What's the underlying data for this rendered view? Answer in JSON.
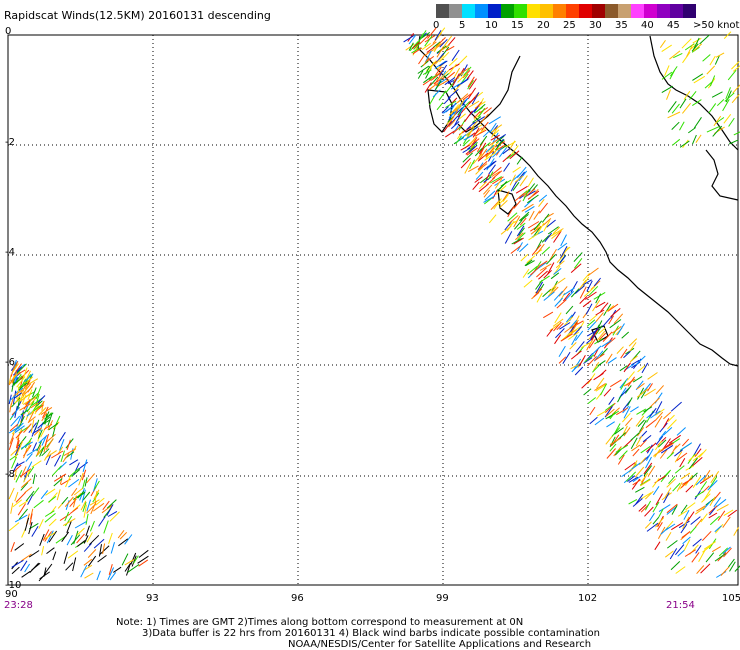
{
  "title": "Rapidscat Winds(12.5KM) 20160131 descending",
  "legend": {
    "ticks": [
      "0",
      "5",
      "10",
      "15",
      "20",
      "25",
      "30",
      "35",
      "40",
      "45",
      ">50 knots"
    ],
    "colors": [
      "#505050",
      "#909090",
      "#00e0ff",
      "#0090ff",
      "#0020c8",
      "#00a000",
      "#30e000",
      "#ffe000",
      "#ffc000",
      "#ff8000",
      "#ff4000",
      "#e00000",
      "#a00000",
      "#8b5a2b",
      "#c8a070",
      "#ff40ff",
      "#d000d0",
      "#9000c0",
      "#6000a0",
      "#300070"
    ]
  },
  "axes": {
    "lat_labels": [
      "0",
      "-2",
      "-4",
      "-6",
      "-8",
      "-10"
    ],
    "lon_labels": [
      "90",
      "93",
      "96",
      "99",
      "102",
      "105"
    ]
  },
  "times": {
    "left": "23:28",
    "right": "21:54"
  },
  "notes": [
    "Note: 1) Times are GMT 2)Times along bottom correspond to measurement at 0N",
    "3)Data buffer is 22 hrs from 20160131 4) Black wind barbs indicate possible contamination",
    "NOAA/NESDIS/Center for Satellite Applications and Research"
  ]
}
